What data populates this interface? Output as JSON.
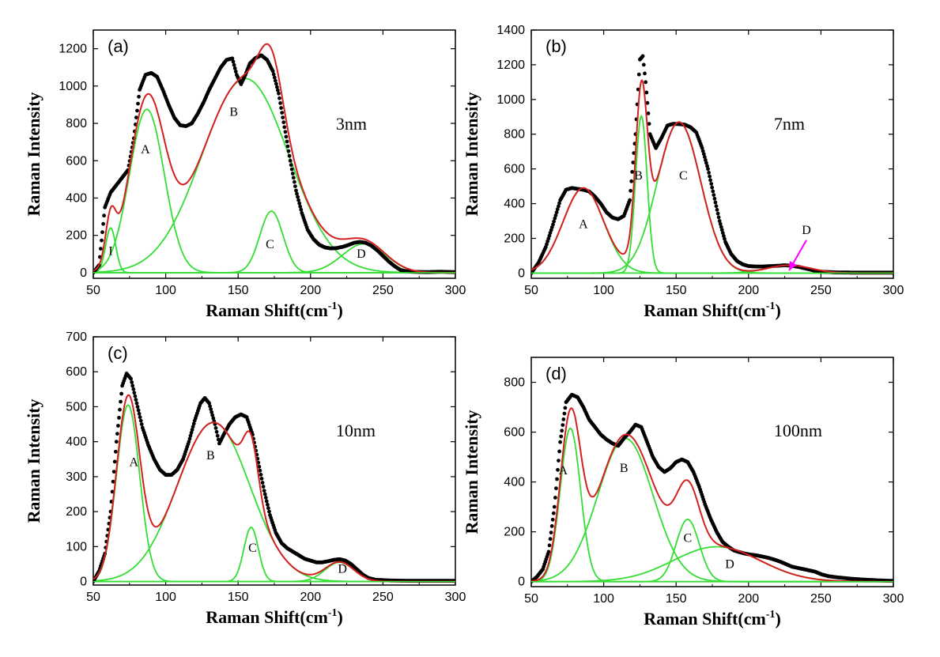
{
  "chart_data": [
    {
      "id": "a",
      "type": "line",
      "panel_label": "(a)",
      "size_label": "3nm",
      "xlabel": "Raman Shift(cm",
      "xlabel_sup": "-1",
      "xlabel_close": ")",
      "ylabel": "Raman Intensity",
      "xlim": [
        50,
        300
      ],
      "ylim": [
        -30,
        1300
      ],
      "xticks": [
        50,
        100,
        150,
        200,
        250,
        300
      ],
      "yticks": [
        0,
        200,
        400,
        600,
        800,
        1000,
        1200
      ],
      "colors": {
        "data": "#000000",
        "fit": "#d42020",
        "component": "#33dd33",
        "arrow": "#ff00ff"
      },
      "peaks": [
        {
          "name": "I",
          "center": 62,
          "height": 240,
          "width": 3.5
        },
        {
          "name": "A",
          "center": 87,
          "height": 875,
          "width": 12
        },
        {
          "name": "B",
          "center": 155,
          "height": 1040,
          "width": 30
        },
        {
          "name": "C",
          "center": 173,
          "height": 330,
          "width": 8
        },
        {
          "name": "D",
          "center": 237,
          "height": 155,
          "width": 15
        }
      ],
      "peak_labels": [
        {
          "text": "I",
          "x": 62,
          "y": 95
        },
        {
          "text": "A",
          "x": 86,
          "y": 640
        },
        {
          "text": "B",
          "x": 147,
          "y": 840
        },
        {
          "text": "C",
          "x": 172,
          "y": 130
        },
        {
          "text": "D",
          "x": 235,
          "y": 80
        }
      ],
      "data": [
        [
          50,
          0
        ],
        [
          54,
          40
        ],
        [
          58,
          350
        ],
        [
          62,
          430
        ],
        [
          66,
          470
        ],
        [
          70,
          510
        ],
        [
          74,
          550
        ],
        [
          78,
          720
        ],
        [
          82,
          980
        ],
        [
          86,
          1060
        ],
        [
          90,
          1070
        ],
        [
          94,
          1050
        ],
        [
          98,
          980
        ],
        [
          102,
          900
        ],
        [
          106,
          830
        ],
        [
          110,
          790
        ],
        [
          114,
          785
        ],
        [
          118,
          800
        ],
        [
          122,
          850
        ],
        [
          126,
          910
        ],
        [
          130,
          980
        ],
        [
          134,
          1040
        ],
        [
          138,
          1100
        ],
        [
          142,
          1140
        ],
        [
          146,
          1148
        ],
        [
          149,
          1060
        ],
        [
          152,
          1010
        ],
        [
          155,
          1060
        ],
        [
          158,
          1120
        ],
        [
          162,
          1150
        ],
        [
          166,
          1165
        ],
        [
          170,
          1140
        ],
        [
          174,
          1080
        ],
        [
          178,
          960
        ],
        [
          182,
          780
        ],
        [
          186,
          600
        ],
        [
          190,
          440
        ],
        [
          194,
          320
        ],
        [
          198,
          230
        ],
        [
          202,
          180
        ],
        [
          206,
          150
        ],
        [
          210,
          135
        ],
        [
          214,
          130
        ],
        [
          218,
          132
        ],
        [
          222,
          138
        ],
        [
          226,
          148
        ],
        [
          230,
          160
        ],
        [
          234,
          165
        ],
        [
          238,
          160
        ],
        [
          242,
          145
        ],
        [
          246,
          120
        ],
        [
          250,
          90
        ],
        [
          254,
          60
        ],
        [
          258,
          35
        ],
        [
          262,
          15
        ],
        [
          266,
          8
        ],
        [
          270,
          5
        ],
        [
          280,
          3
        ],
        [
          290,
          5
        ],
        [
          300,
          3
        ]
      ]
    },
    {
      "id": "b",
      "type": "line",
      "panel_label": "(b)",
      "size_label": "7nm",
      "xlabel": "Raman Shift(cm",
      "xlabel_sup": "-1",
      "xlabel_close": ")",
      "ylabel": "Raman Intensity",
      "xlim": [
        50,
        300
      ],
      "ylim": [
        -30,
        1400
      ],
      "xticks": [
        50,
        100,
        150,
        200,
        250,
        300
      ],
      "yticks": [
        0,
        200,
        400,
        600,
        800,
        1000,
        1200,
        1400
      ],
      "colors": {
        "data": "#000000",
        "fit": "#d42020",
        "component": "#33dd33",
        "arrow": "#ff00ff"
      },
      "peaks": [
        {
          "name": "A",
          "center": 86,
          "height": 490,
          "width": 14
        },
        {
          "name": "B",
          "center": 126,
          "height": 905,
          "width": 4
        },
        {
          "name": "C",
          "center": 152,
          "height": 870,
          "width": 15
        },
        {
          "name": "D",
          "center": 228,
          "height": 45,
          "width": 15
        }
      ],
      "peak_labels": [
        {
          "text": "A",
          "x": 86,
          "y": 260
        },
        {
          "text": "B",
          "x": 124,
          "y": 540
        },
        {
          "text": "C",
          "x": 155,
          "y": 540
        },
        {
          "text": "D",
          "x": 240,
          "y": 225
        }
      ],
      "arrow": {
        "from": [
          240,
          190
        ],
        "to": [
          228,
          15
        ]
      },
      "data": [
        [
          50,
          0
        ],
        [
          55,
          60
        ],
        [
          60,
          150
        ],
        [
          65,
          280
        ],
        [
          70,
          420
        ],
        [
          74,
          480
        ],
        [
          78,
          490
        ],
        [
          82,
          485
        ],
        [
          86,
          480
        ],
        [
          90,
          470
        ],
        [
          94,
          440
        ],
        [
          98,
          400
        ],
        [
          102,
          350
        ],
        [
          106,
          320
        ],
        [
          110,
          310
        ],
        [
          114,
          330
        ],
        [
          118,
          420
        ],
        [
          122,
          800
        ],
        [
          125,
          1230
        ],
        [
          127,
          1250
        ],
        [
          129,
          1100
        ],
        [
          132,
          800
        ],
        [
          136,
          720
        ],
        [
          140,
          780
        ],
        [
          144,
          850
        ],
        [
          148,
          860
        ],
        [
          152,
          858
        ],
        [
          156,
          855
        ],
        [
          160,
          840
        ],
        [
          164,
          810
        ],
        [
          168,
          720
        ],
        [
          172,
          600
        ],
        [
          176,
          450
        ],
        [
          180,
          300
        ],
        [
          184,
          180
        ],
        [
          188,
          110
        ],
        [
          192,
          70
        ],
        [
          196,
          50
        ],
        [
          200,
          40
        ],
        [
          205,
          38
        ],
        [
          210,
          38
        ],
        [
          215,
          40
        ],
        [
          220,
          42
        ],
        [
          225,
          45
        ],
        [
          230,
          42
        ],
        [
          235,
          35
        ],
        [
          240,
          25
        ],
        [
          245,
          15
        ],
        [
          250,
          8
        ],
        [
          260,
          4
        ],
        [
          270,
          3
        ],
        [
          280,
          3
        ],
        [
          290,
          3
        ],
        [
          300,
          3
        ]
      ]
    },
    {
      "id": "c",
      "type": "line",
      "panel_label": "(c)",
      "size_label": "10nm",
      "xlabel": "Raman Shift(cm",
      "xlabel_sup": "-1",
      "xlabel_close": ")",
      "ylabel": "Raman Intensity",
      "xlim": [
        50,
        300
      ],
      "ylim": [
        -10,
        700
      ],
      "xticks": [
        50,
        100,
        150,
        200,
        250,
        300
      ],
      "yticks": [
        0,
        100,
        200,
        300,
        400,
        500,
        600,
        700
      ],
      "colors": {
        "data": "#000000",
        "fit": "#d42020",
        "component": "#33dd33",
        "arrow": "#ff00ff"
      },
      "peaks": [
        {
          "name": "A",
          "center": 74,
          "height": 505,
          "width": 8
        },
        {
          "name": "B",
          "center": 133,
          "height": 455,
          "width": 25
        },
        {
          "name": "C",
          "center": 159,
          "height": 155,
          "width": 5
        },
        {
          "name": "D",
          "center": 220,
          "height": 55,
          "width": 10
        }
      ],
      "peak_labels": [
        {
          "text": "A",
          "x": 78,
          "y": 330
        },
        {
          "text": "B",
          "x": 131,
          "y": 350
        },
        {
          "text": "C",
          "x": 160,
          "y": 85
        },
        {
          "text": "D",
          "x": 222,
          "y": 25
        }
      ],
      "data": [
        [
          50,
          0
        ],
        [
          54,
          30
        ],
        [
          58,
          80
        ],
        [
          62,
          200
        ],
        [
          66,
          400
        ],
        [
          70,
          560
        ],
        [
          73,
          595
        ],
        [
          76,
          580
        ],
        [
          80,
          510
        ],
        [
          84,
          440
        ],
        [
          88,
          390
        ],
        [
          92,
          350
        ],
        [
          96,
          320
        ],
        [
          100,
          305
        ],
        [
          104,
          305
        ],
        [
          108,
          320
        ],
        [
          112,
          350
        ],
        [
          116,
          400
        ],
        [
          120,
          460
        ],
        [
          124,
          510
        ],
        [
          127,
          525
        ],
        [
          130,
          510
        ],
        [
          134,
          450
        ],
        [
          137,
          395
        ],
        [
          140,
          420
        ],
        [
          144,
          450
        ],
        [
          148,
          470
        ],
        [
          152,
          478
        ],
        [
          156,
          470
        ],
        [
          160,
          420
        ],
        [
          164,
          340
        ],
        [
          168,
          260
        ],
        [
          172,
          190
        ],
        [
          176,
          140
        ],
        [
          180,
          110
        ],
        [
          184,
          95
        ],
        [
          188,
          85
        ],
        [
          192,
          75
        ],
        [
          196,
          65
        ],
        [
          200,
          60
        ],
        [
          204,
          55
        ],
        [
          208,
          55
        ],
        [
          212,
          58
        ],
        [
          216,
          62
        ],
        [
          220,
          64
        ],
        [
          224,
          60
        ],
        [
          228,
          50
        ],
        [
          232,
          35
        ],
        [
          236,
          20
        ],
        [
          240,
          10
        ],
        [
          245,
          5
        ],
        [
          255,
          3
        ],
        [
          270,
          2
        ],
        [
          285,
          2
        ],
        [
          300,
          2
        ]
      ]
    },
    {
      "id": "d",
      "type": "line",
      "panel_label": "(d)",
      "size_label": "100nm",
      "xlabel": "Raman Shift(cm",
      "xlabel_sup": "-1",
      "xlabel_close": ")",
      "ylabel": "Raman Intensity",
      "xlim": [
        50,
        300
      ],
      "ylim": [
        -20,
        900
      ],
      "xticks": [
        50,
        100,
        150,
        200,
        250,
        300
      ],
      "yticks": [
        0,
        200,
        400,
        600,
        800
      ],
      "colors": {
        "data": "#000000",
        "fit": "#d42020",
        "component": "#33dd33",
        "arrow": "#ff00ff"
      },
      "peaks": [
        {
          "name": "A",
          "center": 77,
          "height": 615,
          "width": 7
        },
        {
          "name": "B",
          "center": 115,
          "height": 575,
          "width": 19
        },
        {
          "name": "C",
          "center": 158,
          "height": 250,
          "width": 8
        },
        {
          "name": "D",
          "center": 178,
          "height": 140,
          "width": 30
        }
      ],
      "peak_labels": [
        {
          "text": "A",
          "x": 72,
          "y": 430
        },
        {
          "text": "B",
          "x": 114,
          "y": 440
        },
        {
          "text": "C",
          "x": 158,
          "y": 160
        },
        {
          "text": "D",
          "x": 187,
          "y": 55
        }
      ],
      "data": [
        [
          50,
          0
        ],
        [
          54,
          20
        ],
        [
          58,
          50
        ],
        [
          62,
          120
        ],
        [
          66,
          300
        ],
        [
          70,
          560
        ],
        [
          74,
          720
        ],
        [
          78,
          750
        ],
        [
          82,
          740
        ],
        [
          86,
          700
        ],
        [
          90,
          650
        ],
        [
          94,
          620
        ],
        [
          98,
          590
        ],
        [
          102,
          570
        ],
        [
          106,
          555
        ],
        [
          110,
          545
        ],
        [
          114,
          575
        ],
        [
          118,
          600
        ],
        [
          122,
          630
        ],
        [
          126,
          620
        ],
        [
          130,
          560
        ],
        [
          134,
          500
        ],
        [
          138,
          460
        ],
        [
          142,
          440
        ],
        [
          146,
          455
        ],
        [
          150,
          480
        ],
        [
          154,
          490
        ],
        [
          158,
          480
        ],
        [
          162,
          440
        ],
        [
          166,
          380
        ],
        [
          170,
          310
        ],
        [
          174,
          250
        ],
        [
          178,
          200
        ],
        [
          182,
          160
        ],
        [
          186,
          140
        ],
        [
          190,
          125
        ],
        [
          194,
          118
        ],
        [
          198,
          112
        ],
        [
          202,
          108
        ],
        [
          206,
          105
        ],
        [
          210,
          100
        ],
        [
          214,
          95
        ],
        [
          218,
          88
        ],
        [
          222,
          80
        ],
        [
          226,
          70
        ],
        [
          230,
          60
        ],
        [
          234,
          55
        ],
        [
          238,
          50
        ],
        [
          242,
          45
        ],
        [
          246,
          40
        ],
        [
          250,
          30
        ],
        [
          255,
          22
        ],
        [
          260,
          18
        ],
        [
          265,
          15
        ],
        [
          270,
          12
        ],
        [
          275,
          10
        ],
        [
          280,
          8
        ],
        [
          290,
          5
        ],
        [
          300,
          3
        ]
      ]
    }
  ]
}
